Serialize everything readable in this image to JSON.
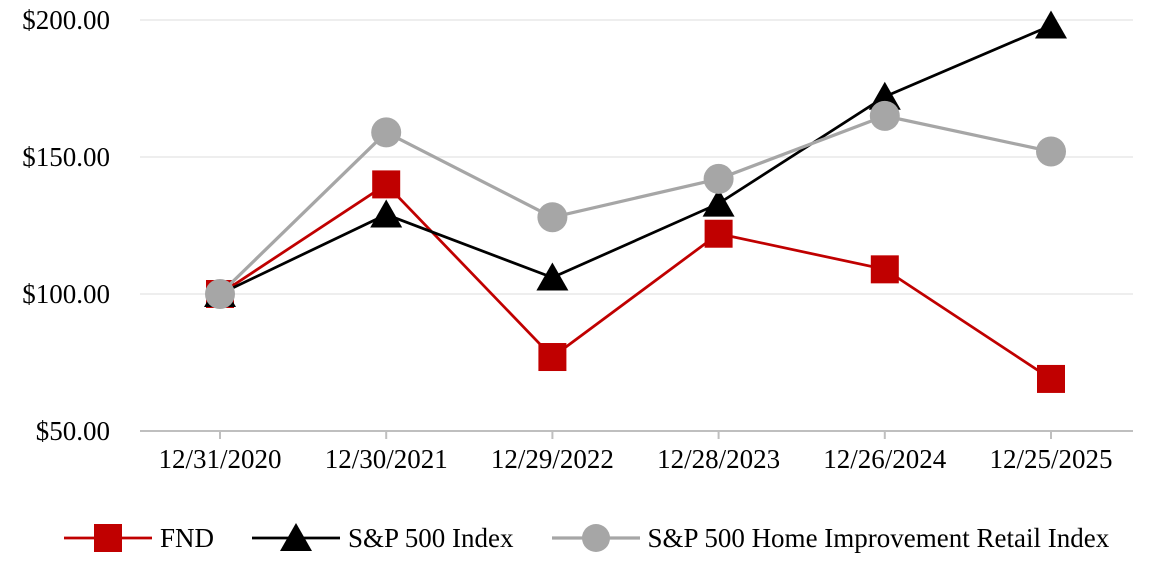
{
  "chart_data": {
    "type": "line",
    "title": "",
    "xlabel": "",
    "ylabel": "",
    "categories": [
      "12/31/2020",
      "12/30/2021",
      "12/29/2022",
      "12/28/2023",
      "12/26/2024",
      "12/25/2025"
    ],
    "series": [
      {
        "name": "FND",
        "color": "#C00000",
        "marker": "square",
        "line_width": 2.75,
        "values": [
          100,
          140,
          77,
          122,
          109,
          69
        ]
      },
      {
        "name": "S&P 500 Index",
        "color": "#000000",
        "marker": "triangle",
        "line_width": 2.75,
        "values": [
          100,
          129,
          106,
          133,
          172,
          198
        ]
      },
      {
        "name": "S&P 500 Home Improvement Retail Index",
        "color": "#A6A6A6",
        "marker": "circle",
        "line_width": 3.25,
        "values": [
          100,
          159,
          128,
          142,
          165,
          152
        ]
      }
    ],
    "ylim": [
      50,
      200
    ],
    "yticks": [
      {
        "value": 50,
        "label": "$50.00"
      },
      {
        "value": 100,
        "label": "$100.00"
      },
      {
        "value": 150,
        "label": "$150.00"
      },
      {
        "value": 200,
        "label": "$200.00"
      }
    ],
    "grid": true,
    "legend_position": "bottom",
    "colors": {
      "background": "#FFFFFF",
      "gridline": "#E8E8E8",
      "axis_line": "#BFBFBF",
      "tick_text": "#000000"
    }
  }
}
